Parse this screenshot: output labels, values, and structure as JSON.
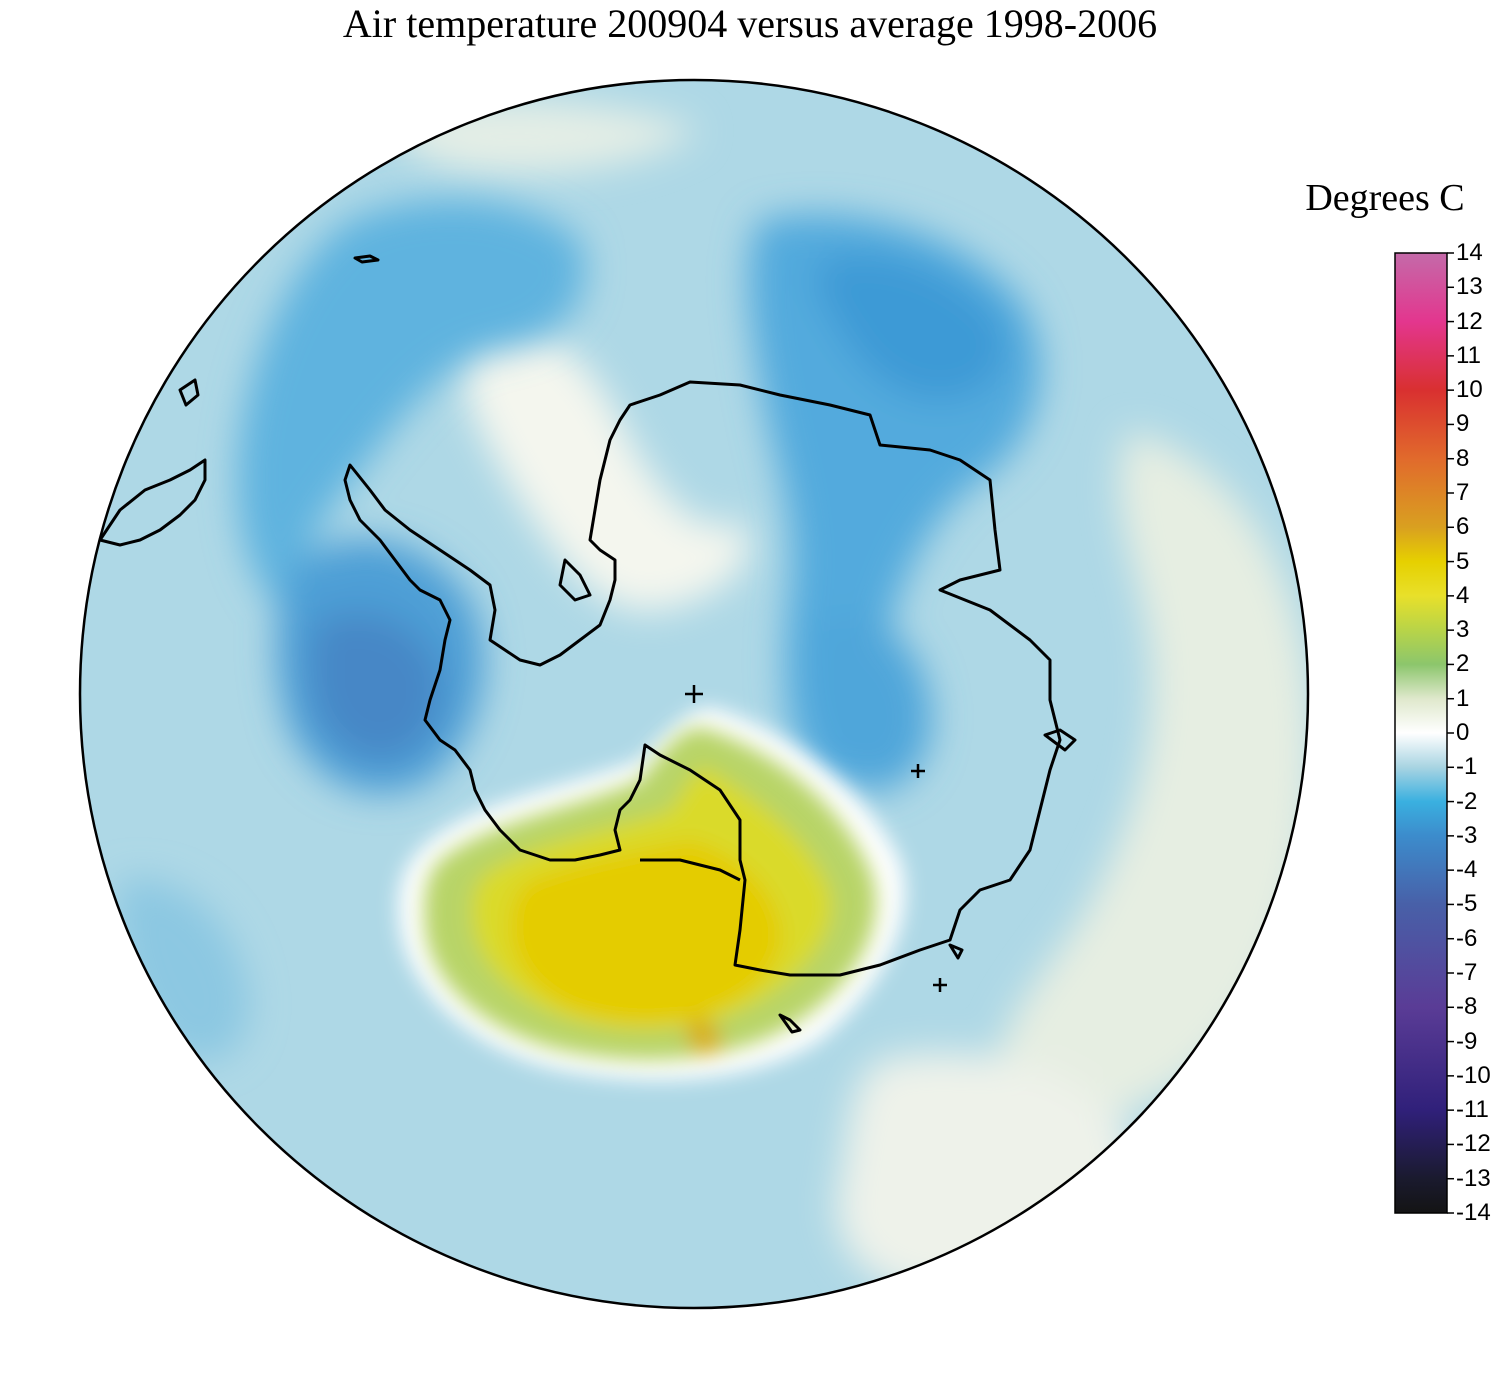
{
  "title": "Air temperature 200904 versus average 1998-2006",
  "legend": {
    "title": "Degrees C",
    "min": -14,
    "max": 14,
    "ticks": [
      "14",
      "13",
      "12",
      "11",
      "10",
      "9",
      "8",
      "7",
      "6",
      "5",
      "4",
      "3",
      "2",
      "1",
      "0",
      "-1",
      "-2",
      "-3",
      "-4",
      "-5",
      "-6",
      "-7",
      "-8",
      "-9",
      "-10",
      "-11",
      "-12",
      "-13",
      "-14"
    ],
    "color_stops": [
      {
        "value": 14,
        "color": "#c46aa9"
      },
      {
        "value": 12,
        "color": "#e3368e"
      },
      {
        "value": 10,
        "color": "#d93030"
      },
      {
        "value": 8,
        "color": "#e16a2c"
      },
      {
        "value": 6,
        "color": "#d9a020"
      },
      {
        "value": 5,
        "color": "#e6d000"
      },
      {
        "value": 4,
        "color": "#e8e02a"
      },
      {
        "value": 3,
        "color": "#b8d448"
      },
      {
        "value": 2,
        "color": "#8cc66c"
      },
      {
        "value": 1,
        "color": "#dfe8cc"
      },
      {
        "value": 0,
        "color": "#ffffff"
      },
      {
        "value": -1,
        "color": "#a8d4e2"
      },
      {
        "value": -2,
        "color": "#3ab0e0"
      },
      {
        "value": -3,
        "color": "#3c8ccc"
      },
      {
        "value": -5,
        "color": "#4860a8"
      },
      {
        "value": -8,
        "color": "#5a3c96"
      },
      {
        "value": -11,
        "color": "#30207a"
      },
      {
        "value": -13,
        "color": "#1a1a2e"
      },
      {
        "value": -14,
        "color": "#141414"
      }
    ]
  },
  "map": {
    "projection": "south-polar-stereographic",
    "colors": {
      "background_anomaly": "#a9d5e3",
      "border": "#000000",
      "coastline": "#000000"
    }
  }
}
